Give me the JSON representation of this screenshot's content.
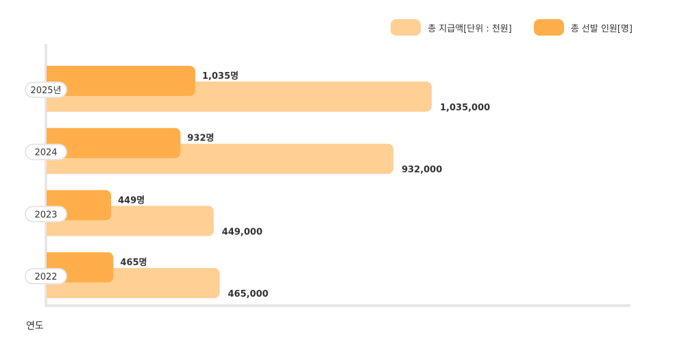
{
  "chart_data": {
    "type": "bar",
    "orientation": "horizontal",
    "categories": [
      "2025년",
      "2024",
      "2023",
      "2022"
    ],
    "series": [
      {
        "name": "총 선발 인원[명]",
        "color": "#ffae4a",
        "values": [
          1035,
          932,
          449,
          465
        ],
        "labels": [
          "1,035명",
          "932명",
          "449명",
          "465명"
        ]
      },
      {
        "name": "총 지급액[단위 : 천원]",
        "color": "#ffcf94",
        "values": [
          1035000,
          932000,
          449000,
          465000
        ],
        "labels": [
          "1,035,000",
          "932,000",
          "449,000",
          "465,000"
        ]
      }
    ],
    "xlabel": "연도",
    "legend_position": "top-right",
    "grid": false
  },
  "legend": {
    "items": [
      {
        "label": "총 지급액[단위 : 천원]",
        "color": "#ffcf94"
      },
      {
        "label": "총 선발 인원[명]",
        "color": "#ffae4a"
      }
    ]
  },
  "colors": {
    "axis": "#e6e6e6",
    "text": "#333333",
    "pill_border": "#e6e6e6"
  }
}
